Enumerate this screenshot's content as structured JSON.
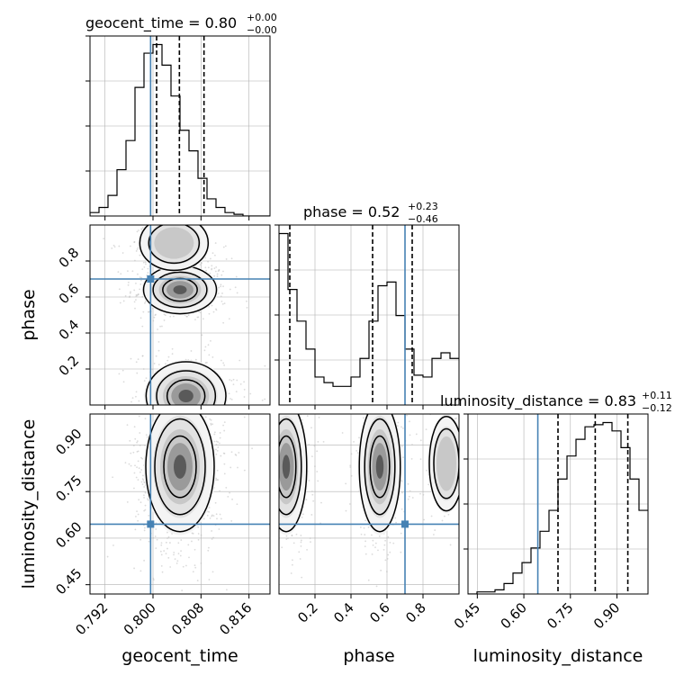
{
  "chart_data": {
    "type": "corner",
    "parameters": [
      "geocent_time",
      "phase",
      "luminosity_distance"
    ],
    "truths": {
      "geocent_time": 0.7996,
      "phase": 0.7,
      "luminosity_distance": 0.645
    },
    "panels": {
      "geocent_time": {
        "title_main": "geocent_time = 0.80",
        "title_upper": "+0.00",
        "title_lower": "−0.00",
        "xlabel": "geocent_time",
        "xlim": [
          0.7895,
          0.8195
        ],
        "ticks": [
          0.792,
          0.8,
          0.808,
          0.816
        ],
        "tick_labels": [
          "0.792",
          "0.800",
          "0.808",
          "0.816"
        ],
        "quantiles": [
          0.8006,
          0.8044,
          0.8085
        ],
        "hist_edges_start": 0.7895,
        "hist_bin_width": 0.0015,
        "hist_counts": [
          0.02,
          0.05,
          0.12,
          0.27,
          0.44,
          0.75,
          0.95,
          1.0,
          0.88,
          0.7,
          0.5,
          0.38,
          0.22,
          0.1,
          0.05,
          0.02,
          0.01,
          0.0,
          0.0,
          0.0
        ]
      },
      "phase": {
        "title_main": "phase = 0.52",
        "title_upper": "+0.23",
        "title_lower": "−0.46",
        "xlabel": "phase",
        "ylabel": "phase",
        "xlim": [
          0.0,
          1.0
        ],
        "ticks": [
          0.2,
          0.4,
          0.6,
          0.8
        ],
        "tick_labels": [
          "0.2",
          "0.4",
          "0.6",
          "0.8"
        ],
        "quantiles": [
          0.06,
          0.52,
          0.74
        ],
        "hist_edges_start": 0.0,
        "hist_bin_width": 0.05,
        "hist_counts": [
          0.92,
          0.62,
          0.45,
          0.3,
          0.15,
          0.12,
          0.1,
          0.1,
          0.15,
          0.25,
          0.45,
          0.64,
          0.66,
          0.48,
          0.3,
          0.16,
          0.15,
          0.25,
          0.28,
          0.25
        ]
      },
      "luminosity_distance": {
        "title_main": "luminosity_distance = 0.83",
        "title_upper": "+0.11",
        "title_lower": "−0.12",
        "xlabel": "luminosity_distance",
        "ylabel": "luminosity_distance",
        "xlim": [
          0.42,
          1.0
        ],
        "ticks": [
          0.45,
          0.6,
          0.75,
          0.9
        ],
        "tick_labels": [
          "0.45",
          "0.60",
          "0.75",
          "0.90"
        ],
        "quantiles": [
          0.71,
          0.83,
          0.935
        ],
        "hist_edges_start": 0.42,
        "hist_bin_width": 0.029,
        "hist_counts": [
          0.0,
          0.01,
          0.01,
          0.02,
          0.05,
          0.1,
          0.15,
          0.22,
          0.3,
          0.4,
          0.55,
          0.66,
          0.74,
          0.8,
          0.81,
          0.82,
          0.78,
          0.7,
          0.55,
          0.4
        ]
      }
    },
    "scatter_regions": {
      "geocent_time_vs_phase": {
        "modes": [
          {
            "x": 0.8045,
            "y": 0.64,
            "sx": 0.0032,
            "sy": 0.07,
            "weight": 0.55
          },
          {
            "x": 0.8055,
            "y": 0.05,
            "sx": 0.0035,
            "sy": 0.1,
            "weight": 0.45
          },
          {
            "x": 0.8035,
            "y": 0.9,
            "sx": 0.003,
            "sy": 0.08,
            "weight": 0.25
          }
        ]
      },
      "geocent_time_vs_luminosity_distance": {
        "modes": [
          {
            "x": 0.8045,
            "y": 0.83,
            "sx": 0.003,
            "sy": 0.11,
            "weight": 1.0
          }
        ]
      },
      "phase_vs_luminosity_distance": {
        "modes": [
          {
            "x": 0.04,
            "y": 0.83,
            "sx": 0.06,
            "sy": 0.11,
            "weight": 0.5
          },
          {
            "x": 0.56,
            "y": 0.83,
            "sx": 0.06,
            "sy": 0.11,
            "weight": 0.5
          },
          {
            "x": 0.93,
            "y": 0.84,
            "sx": 0.05,
            "sy": 0.08,
            "weight": 0.15
          }
        ]
      }
    },
    "colors": {
      "truth": "#4682b4",
      "hist": "#000000",
      "scatter": "#bdbdbd",
      "grid": "#b0b0b0"
    }
  }
}
